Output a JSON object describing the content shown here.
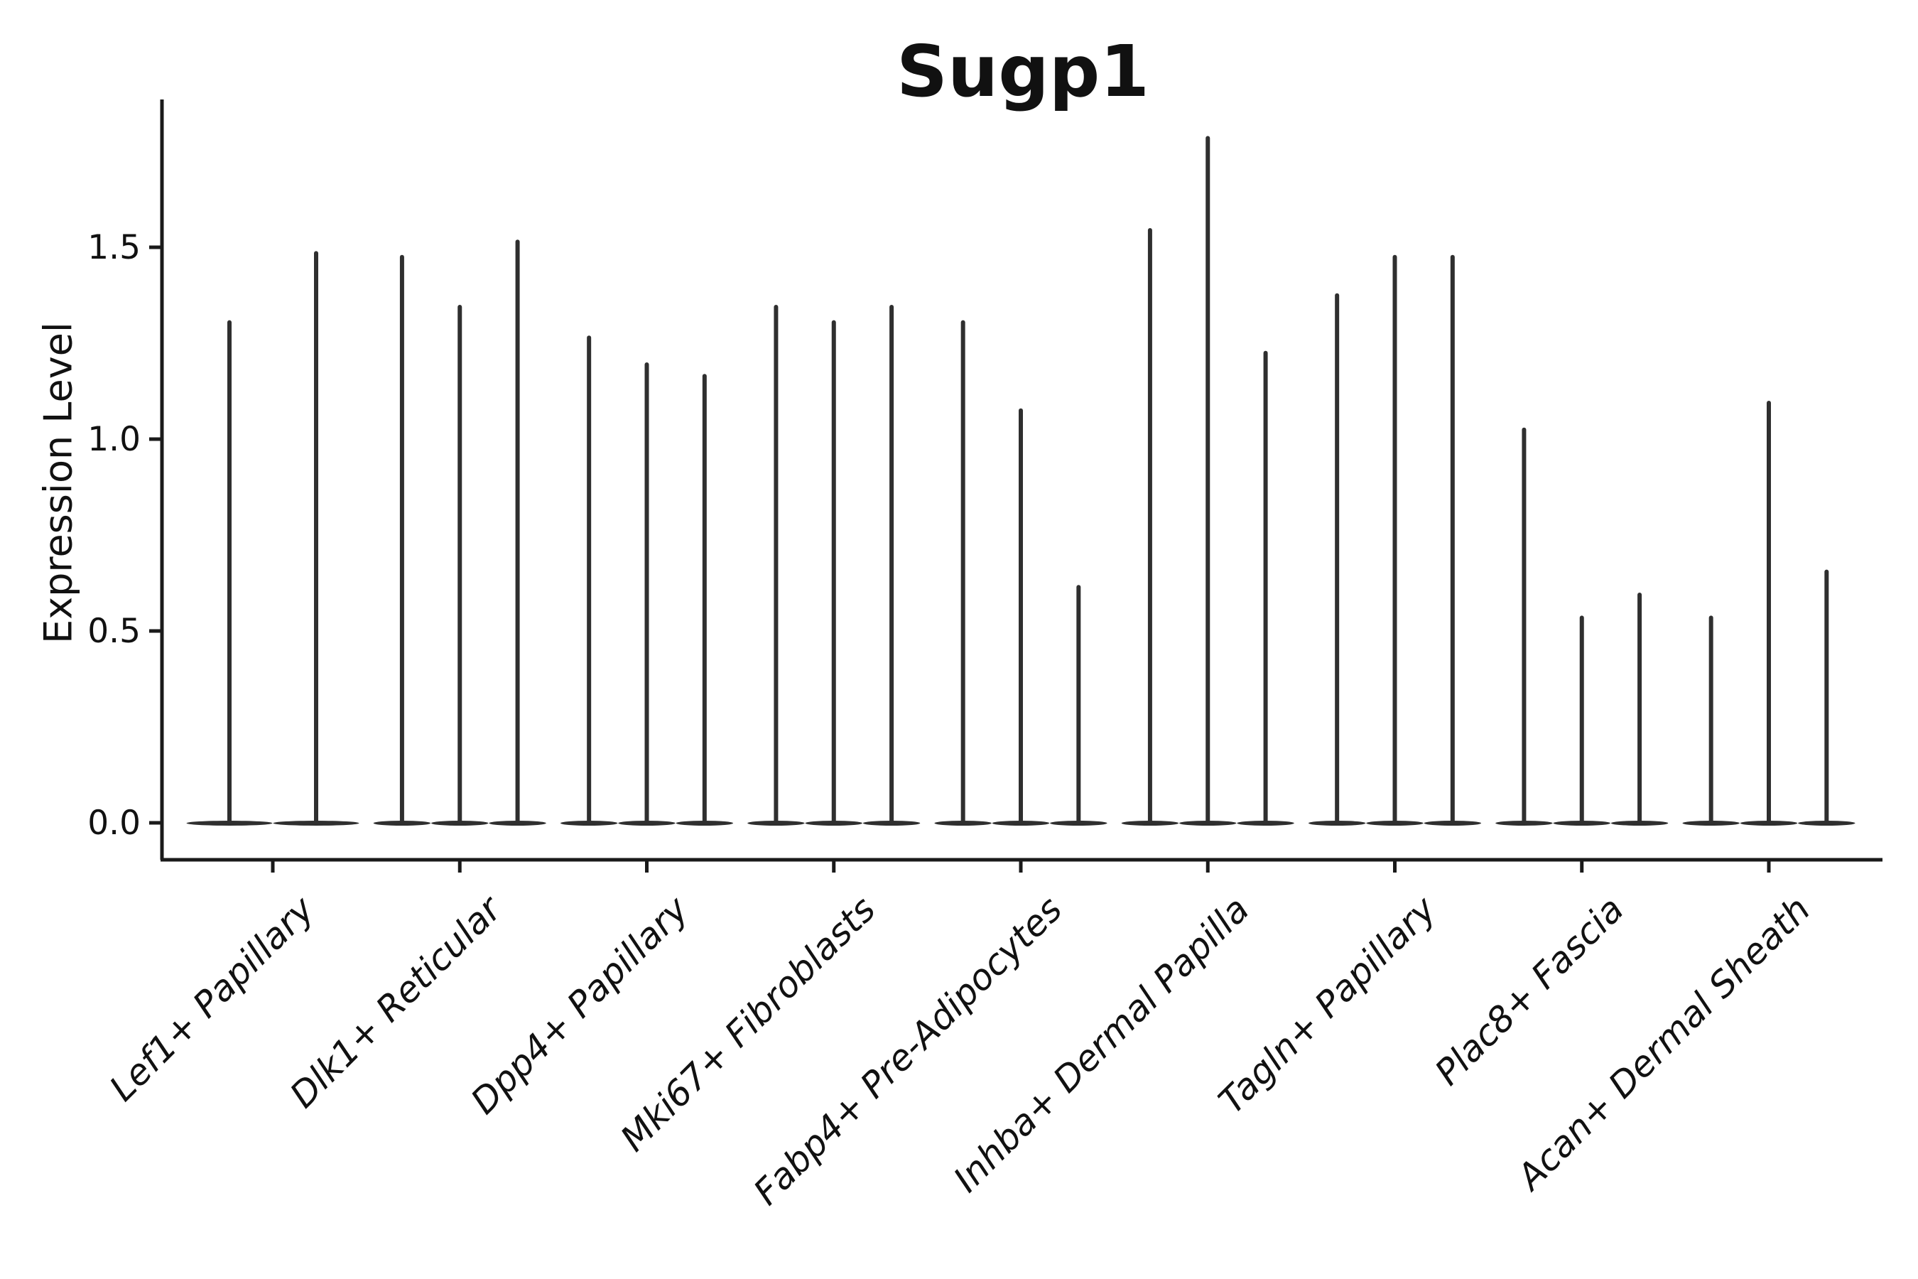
{
  "chart_data": {
    "type": "violin",
    "title": "Sugp1",
    "ylabel": "Expression Level",
    "xlabel": "",
    "yticks": [
      0.0,
      0.5,
      1.0,
      1.5
    ],
    "ytick_labels": [
      "0.0",
      "0.5",
      "1.0",
      "1.5"
    ],
    "ylim": [
      -0.1,
      1.89
    ],
    "grid": false,
    "legend": "none",
    "categories": [
      "Lef1+ Papillary",
      "Dlk1+ Reticular",
      "Dpp4+ Papillary",
      "Mki67+ Fibroblasts",
      "Fabp4+ Pre-Adipocytes",
      "Inhba+ Dermal Papilla",
      "Tagln+ Papillary",
      "Plac8+ Fascia",
      "Acan+ Dermal Sheath"
    ],
    "groups": [
      {
        "category": "Lef1+ Papillary",
        "violin_maxima": [
          1.31,
          1.49
        ]
      },
      {
        "category": "Dlk1+ Reticular",
        "violin_maxima": [
          1.48,
          1.35,
          1.52
        ]
      },
      {
        "category": "Dpp4+ Papillary",
        "violin_maxima": [
          1.27,
          1.2,
          1.17
        ]
      },
      {
        "category": "Mki67+ Fibroblasts",
        "violin_maxima": [
          1.35,
          1.31,
          1.35
        ]
      },
      {
        "category": "Fabp4+ Pre-Adipocytes",
        "violin_maxima": [
          1.31,
          1.08,
          0.62
        ]
      },
      {
        "category": "Inhba+ Dermal Papilla",
        "violin_maxima": [
          1.55,
          1.79,
          1.23
        ]
      },
      {
        "category": "Tagln+ Papillary",
        "violin_maxima": [
          1.38,
          1.48,
          1.48
        ]
      },
      {
        "category": "Plac8+ Fascia",
        "violin_maxima": [
          1.03,
          0.54,
          0.6
        ]
      },
      {
        "category": "Acan+ Dermal Sheath",
        "violin_maxima": [
          0.54,
          1.1,
          0.66
        ]
      }
    ],
    "note": "Each violin's density mass sits flat at expression 0 with a thin spike rising to the listed maximum expression value."
  },
  "colors": {
    "background": "#ffffff",
    "violin": "#2f2f2f",
    "axis": "#1a1a1a",
    "text": "#111111"
  }
}
